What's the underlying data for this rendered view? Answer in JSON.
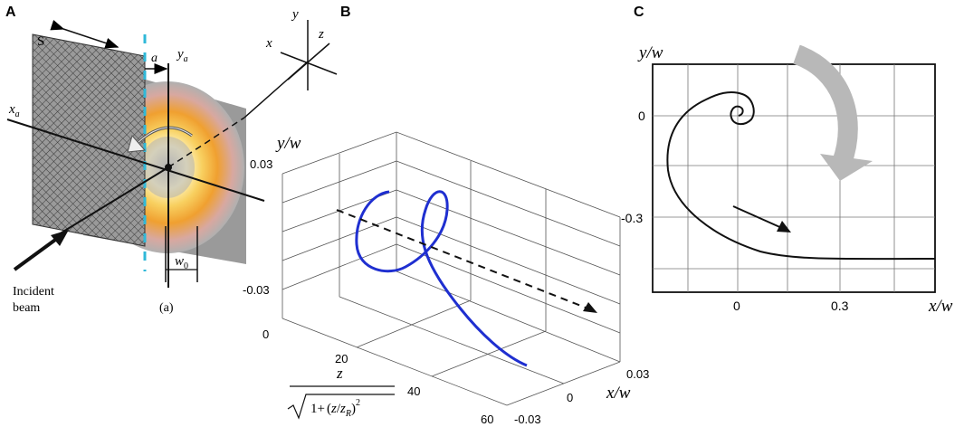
{
  "panel_a": {
    "letter": "A",
    "screen_label": "S",
    "axis_y": "y",
    "axis_x": "x",
    "axis_z": "z",
    "axis_ya": "y",
    "axis_ya_sub": "a",
    "axis_xa": "x",
    "axis_xa_sub": "a",
    "gap_label": "a",
    "waist_label": "w",
    "waist_sub": "0",
    "incident_line1": "Incident",
    "incident_line2": "beam",
    "caption": "(a)",
    "colors": {
      "beam_core": "#fffbe0",
      "beam_ring": "#f4b23a",
      "beam_edge": "#c9a0a0",
      "dashed_edge": "#2fb8d8"
    }
  },
  "panel_b": {
    "letter": "B",
    "ylabel": "y/w",
    "xlabel": "x/w",
    "y_ticks": [
      "0.03",
      "-0.03"
    ],
    "z_ticks": [
      "0",
      "20",
      "40",
      "60"
    ],
    "x_ticks": [
      "0.03",
      "0",
      "-0.03"
    ],
    "z_label_num": "z",
    "z_label_den_pre": "1+",
    "z_label_den_z": "z",
    "z_label_den_zr": "z",
    "z_label_den_zr_sub": "R",
    "z_label_den_exp": "2",
    "colors": {
      "curve": "#1f2fd0"
    }
  },
  "panel_c": {
    "letter": "C",
    "ylabel": "y/w",
    "xlabel": "x/w",
    "y_ticks": [
      "0",
      "-0.3"
    ],
    "x_ticks": [
      "0",
      "0.3"
    ],
    "colors": {
      "big_arrow": "#b8b8b8"
    }
  },
  "chart_data": {
    "type": "line",
    "xlabel": "x/w",
    "ylabel": "y/w",
    "x_ticks": [
      0,
      0.3
    ],
    "y_ticks": [
      0,
      -0.3
    ],
    "series": [
      {
        "x": [
          0,
          0.02,
          0.012,
          -0.01,
          -0.018,
          -0.008,
          0.015,
          0.03,
          0.015,
          -0.02,
          -0.06,
          -0.15,
          -0.21,
          -0.22,
          -0.18,
          -0.08,
          0.05,
          0.2,
          0.35,
          0.5,
          0.6
        ],
        "y": [
          0,
          0,
          0.018,
          0.018,
          -0.005,
          -0.025,
          -0.025,
          0.0,
          0.04,
          0.05,
          0.045,
          -0.02,
          -0.12,
          -0.22,
          -0.32,
          -0.4,
          -0.45,
          -0.47,
          -0.48,
          -0.48,
          -0.48
        ]
      }
    ]
  }
}
